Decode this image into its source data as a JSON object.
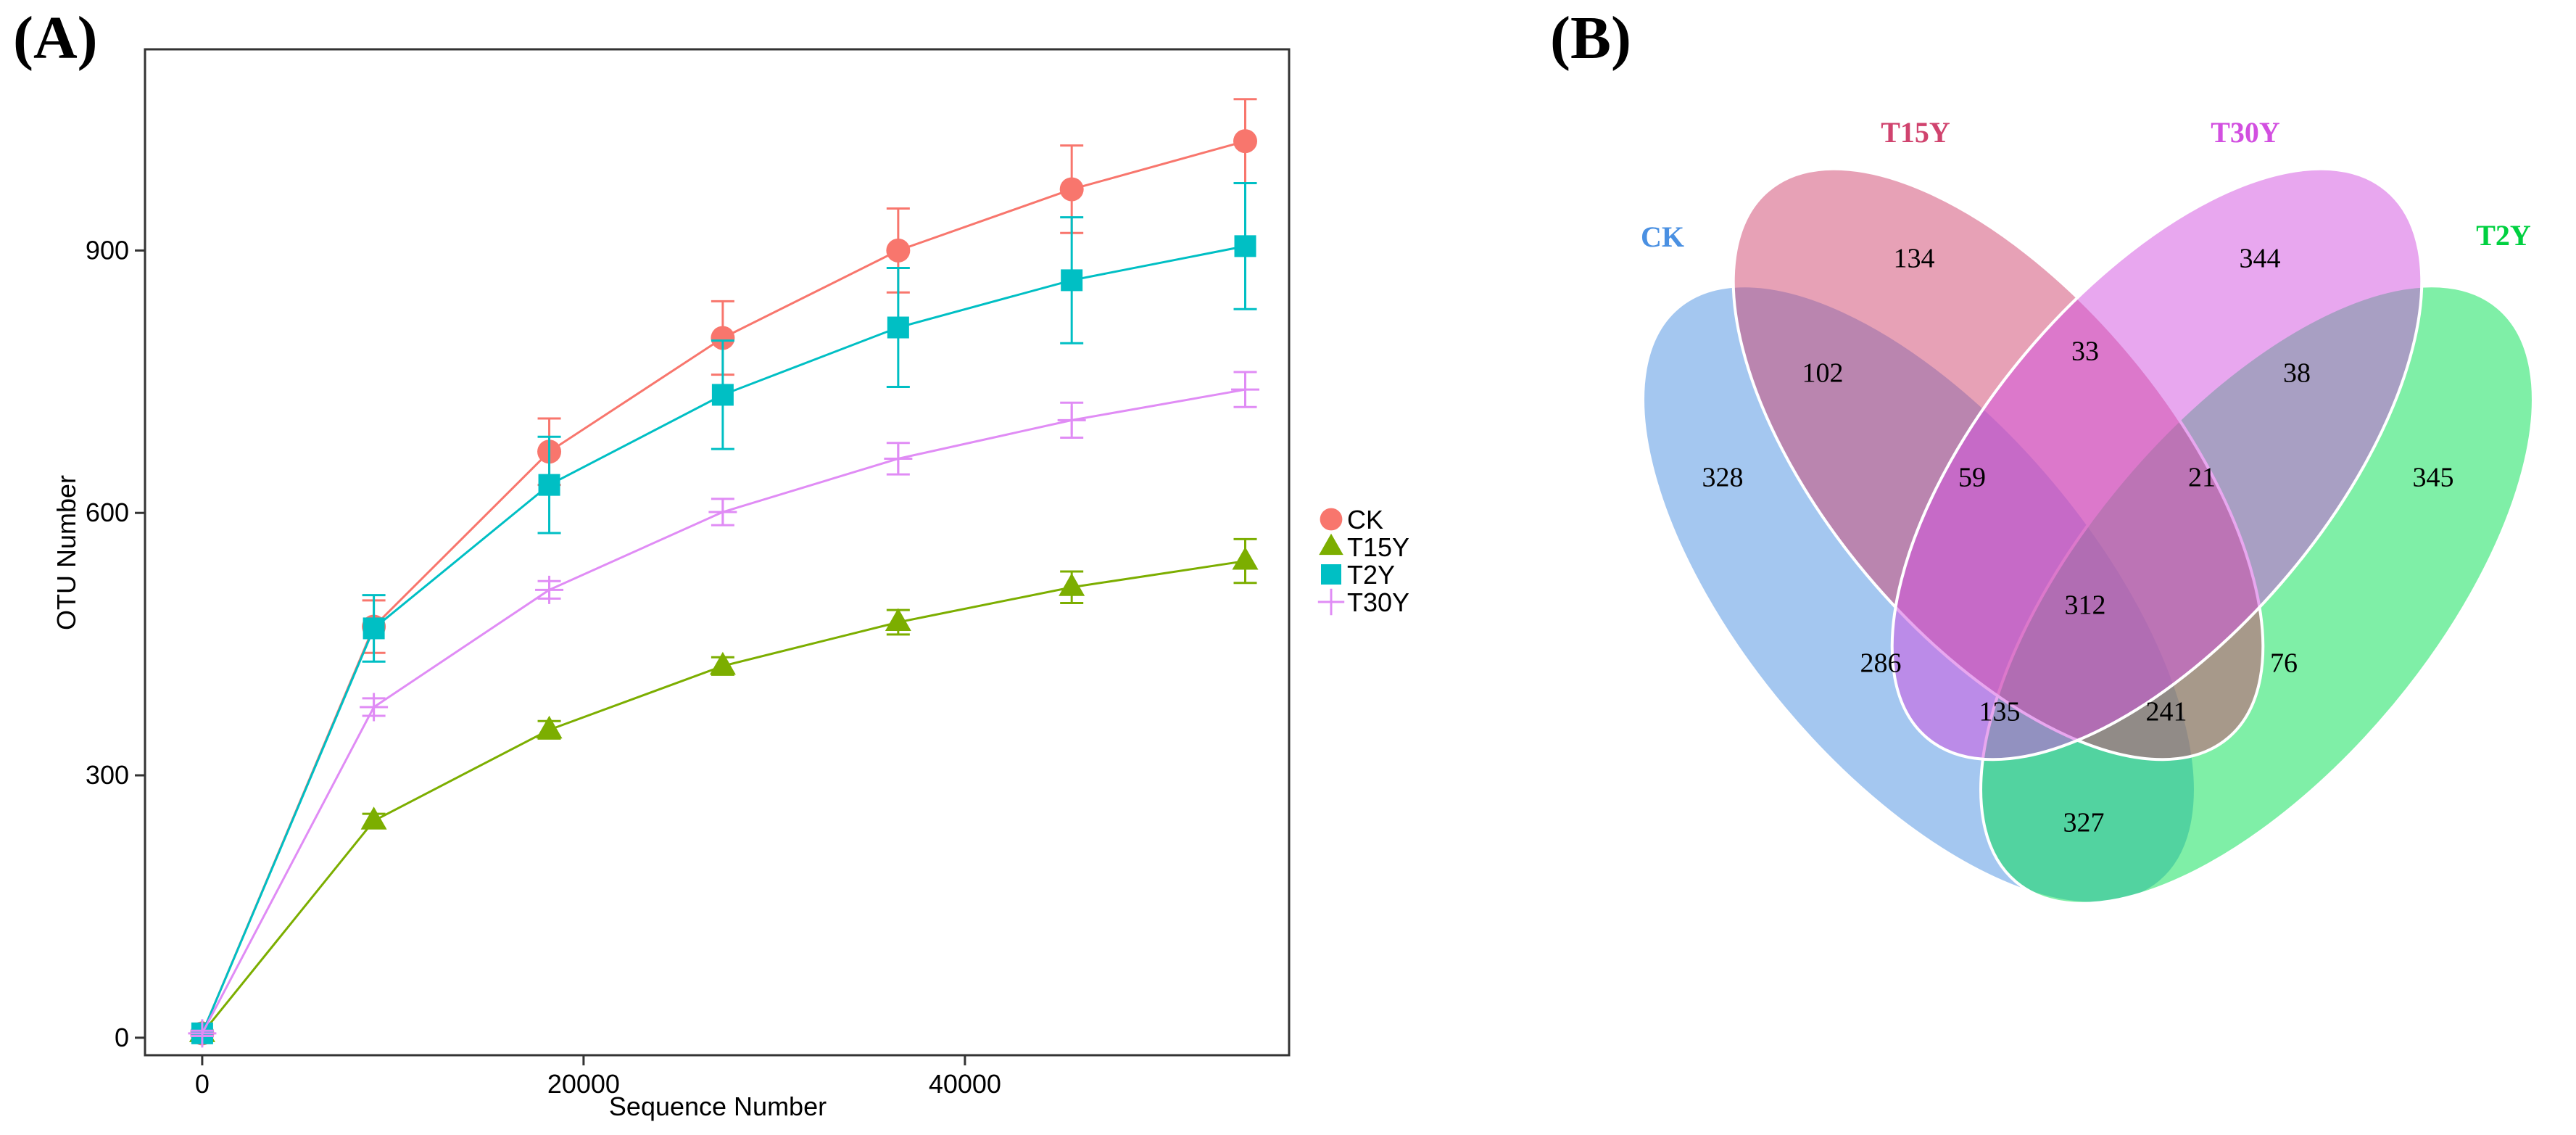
{
  "chart_data": [
    {
      "type": "line",
      "panel_label": "(A)",
      "xlabel": "Sequence Number",
      "ylabel": "OTU Number",
      "xlim": [
        -3000,
        57000
      ],
      "ylim": [
        -20,
        1130
      ],
      "xticks": [
        0,
        20000,
        40000
      ],
      "xtick_labels": [
        "0",
        "20000",
        "40000"
      ],
      "yticks": [
        0,
        300,
        600,
        900
      ],
      "ytick_labels": [
        "0",
        "300",
        "600",
        "900"
      ],
      "grid": false,
      "legend_position": "right",
      "x": [
        0,
        9000,
        18200,
        27300,
        36500,
        45600,
        54700
      ],
      "series": [
        {
          "name": "CK",
          "marker": "circle",
          "color": "#F8766D",
          "values": [
            5,
            470,
            670,
            800,
            900,
            970,
            1025
          ],
          "errors": [
            3,
            30,
            38,
            42,
            48,
            50,
            48
          ]
        },
        {
          "name": "T15Y",
          "marker": "triangle",
          "color": "#7CAE00",
          "values": [
            5,
            248,
            352,
            425,
            475,
            515,
            545
          ],
          "errors": [
            3,
            8,
            10,
            10,
            14,
            18,
            25
          ]
        },
        {
          "name": "T2Y",
          "marker": "square",
          "color": "#00BFC4",
          "values": [
            5,
            468,
            632,
            735,
            812,
            866,
            905
          ],
          "errors": [
            3,
            38,
            55,
            62,
            68,
            72,
            72
          ]
        },
        {
          "name": "T30Y",
          "marker": "plus",
          "color": "#E08CF5",
          "values": [
            5,
            378,
            512,
            601,
            662,
            706,
            741
          ],
          "errors": [
            3,
            10,
            10,
            15,
            18,
            20,
            20
          ]
        }
      ]
    },
    {
      "type": "venn",
      "panel_label": "(B)",
      "sets": [
        {
          "name": "CK",
          "color": "#4A90E2"
        },
        {
          "name": "T15Y",
          "color": "#D0436E"
        },
        {
          "name": "T30Y",
          "color": "#D24FE0"
        },
        {
          "name": "T2Y",
          "color": "#00E050"
        }
      ],
      "regions": [
        {
          "sets": [
            "CK"
          ],
          "count": 328
        },
        {
          "sets": [
            "T15Y"
          ],
          "count": 134
        },
        {
          "sets": [
            "T30Y"
          ],
          "count": 344
        },
        {
          "sets": [
            "T2Y"
          ],
          "count": 345
        },
        {
          "sets": [
            "CK",
            "T15Y"
          ],
          "count": 102
        },
        {
          "sets": [
            "T15Y",
            "T30Y"
          ],
          "count": 33
        },
        {
          "sets": [
            "T30Y",
            "T2Y"
          ],
          "count": 38
        },
        {
          "sets": [
            "CK",
            "T15Y",
            "T30Y"
          ],
          "count": 59
        },
        {
          "sets": [
            "T15Y",
            "T30Y",
            "T2Y"
          ],
          "count": 21
        },
        {
          "sets": [
            "CK",
            "T15Y",
            "T30Y",
            "T2Y"
          ],
          "count": 312
        },
        {
          "sets": [
            "CK",
            "T30Y"
          ],
          "count": 286
        },
        {
          "sets": [
            "T15Y",
            "T2Y"
          ],
          "count": 76
        },
        {
          "sets": [
            "CK",
            "T30Y",
            "T2Y"
          ],
          "count": 135
        },
        {
          "sets": [
            "CK",
            "T15Y",
            "T2Y"
          ],
          "count": 241
        },
        {
          "sets": [
            "CK",
            "T2Y"
          ],
          "count": 327
        }
      ]
    }
  ]
}
